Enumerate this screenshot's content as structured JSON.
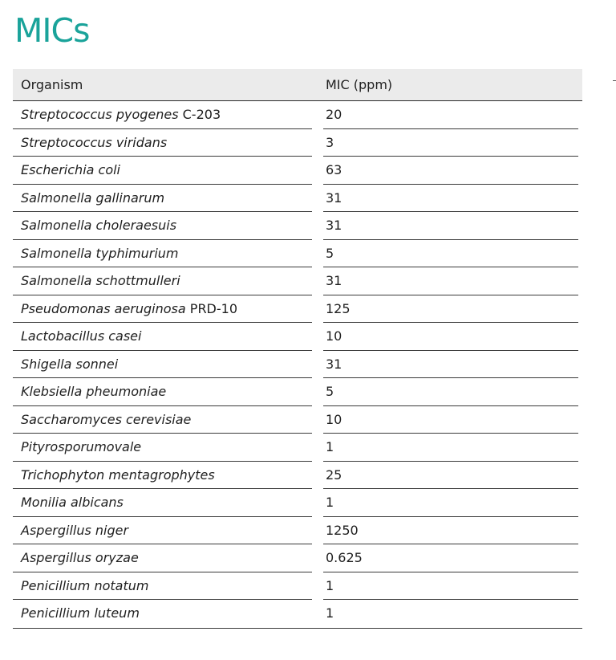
{
  "page": {
    "title": "MICs",
    "accent_color": "#1aa39a"
  },
  "table": {
    "columns": [
      "Organism",
      "MIC (ppm)"
    ],
    "rows": [
      {
        "organism": "Streptococcus pyogenes",
        "strain": " C-203",
        "mic": "20"
      },
      {
        "organism": "Streptococcus viridans",
        "strain": "",
        "mic": "3"
      },
      {
        "organism": "Escherichia coli",
        "strain": "",
        "mic": "63"
      },
      {
        "organism": "Salmonella gallinarum",
        "strain": "",
        "mic": "31"
      },
      {
        "organism": "Salmonella choleraesuis",
        "strain": "",
        "mic": "31"
      },
      {
        "organism": "Salmonella typhimurium",
        "strain": "",
        "mic": "5"
      },
      {
        "organism": "Salmonella schottmulleri",
        "strain": "",
        "mic": "31"
      },
      {
        "organism": "Pseudomonas aeruginosa",
        "strain": " PRD-10",
        "mic": "125"
      },
      {
        "organism": "Lactobacillus casei",
        "strain": "",
        "mic": "10"
      },
      {
        "organism": "Shigella sonnei",
        "strain": "",
        "mic": "31"
      },
      {
        "organism": "Klebsiella pheumoniae",
        "strain": "",
        "mic": "5"
      },
      {
        "organism": "Saccharomyces cerevisiae",
        "strain": "",
        "mic": "10"
      },
      {
        "organism": "Pityrosporumovale",
        "strain": "",
        "mic": "1"
      },
      {
        "organism": "Trichophyton mentagrophytes",
        "strain": "",
        "mic": "25"
      },
      {
        "organism": "Monilia albicans",
        "strain": "",
        "mic": "1"
      },
      {
        "organism": "Aspergillus niger",
        "strain": "",
        "mic": "1250"
      },
      {
        "organism": "Aspergillus oryzae",
        "strain": "",
        "mic": "0.625"
      },
      {
        "organism": "Penicillium notatum",
        "strain": "",
        "mic": "1"
      },
      {
        "organism": "Penicillium luteum",
        "strain": "",
        "mic": "1"
      }
    ]
  }
}
